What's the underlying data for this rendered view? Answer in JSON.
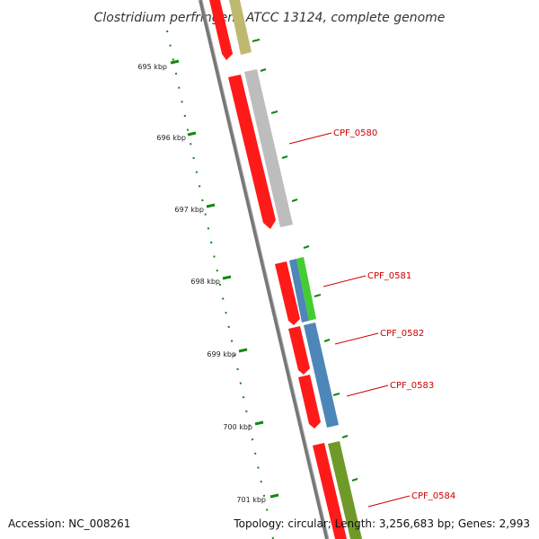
{
  "title": "Clostridium perfringens ATCC 13124, complete genome",
  "footer": {
    "accession": "Accession: NC_008261",
    "topology": "Topology: circular; Length: 3,256,683 bp; Genes: 2,993"
  },
  "ticks": [
    {
      "label": "695 kbp"
    },
    {
      "label": "696 kbp"
    },
    {
      "label": "697 kbp"
    },
    {
      "label": "698 kbp"
    },
    {
      "label": "699 kbp"
    },
    {
      "label": "700 kbp"
    },
    {
      "label": "701 kbp"
    }
  ],
  "gene_labels": [
    {
      "label": "CPF_0580"
    },
    {
      "label": "CPF_0581"
    },
    {
      "label": "CPF_0582"
    },
    {
      "label": "CPF_0583"
    },
    {
      "label": "CPF_0584"
    }
  ],
  "colors": {
    "cds_forward": "#ff1a1a",
    "gray_feature": "#bdbdbd",
    "blue_feature": "#4d86b8",
    "green_feature": "#44cc33",
    "olive_feature": "#6f9a2a",
    "khaki_feature": "#bfb970",
    "tick_green": "#118811",
    "backbone": "#777777",
    "label_red": "#cc0000"
  }
}
